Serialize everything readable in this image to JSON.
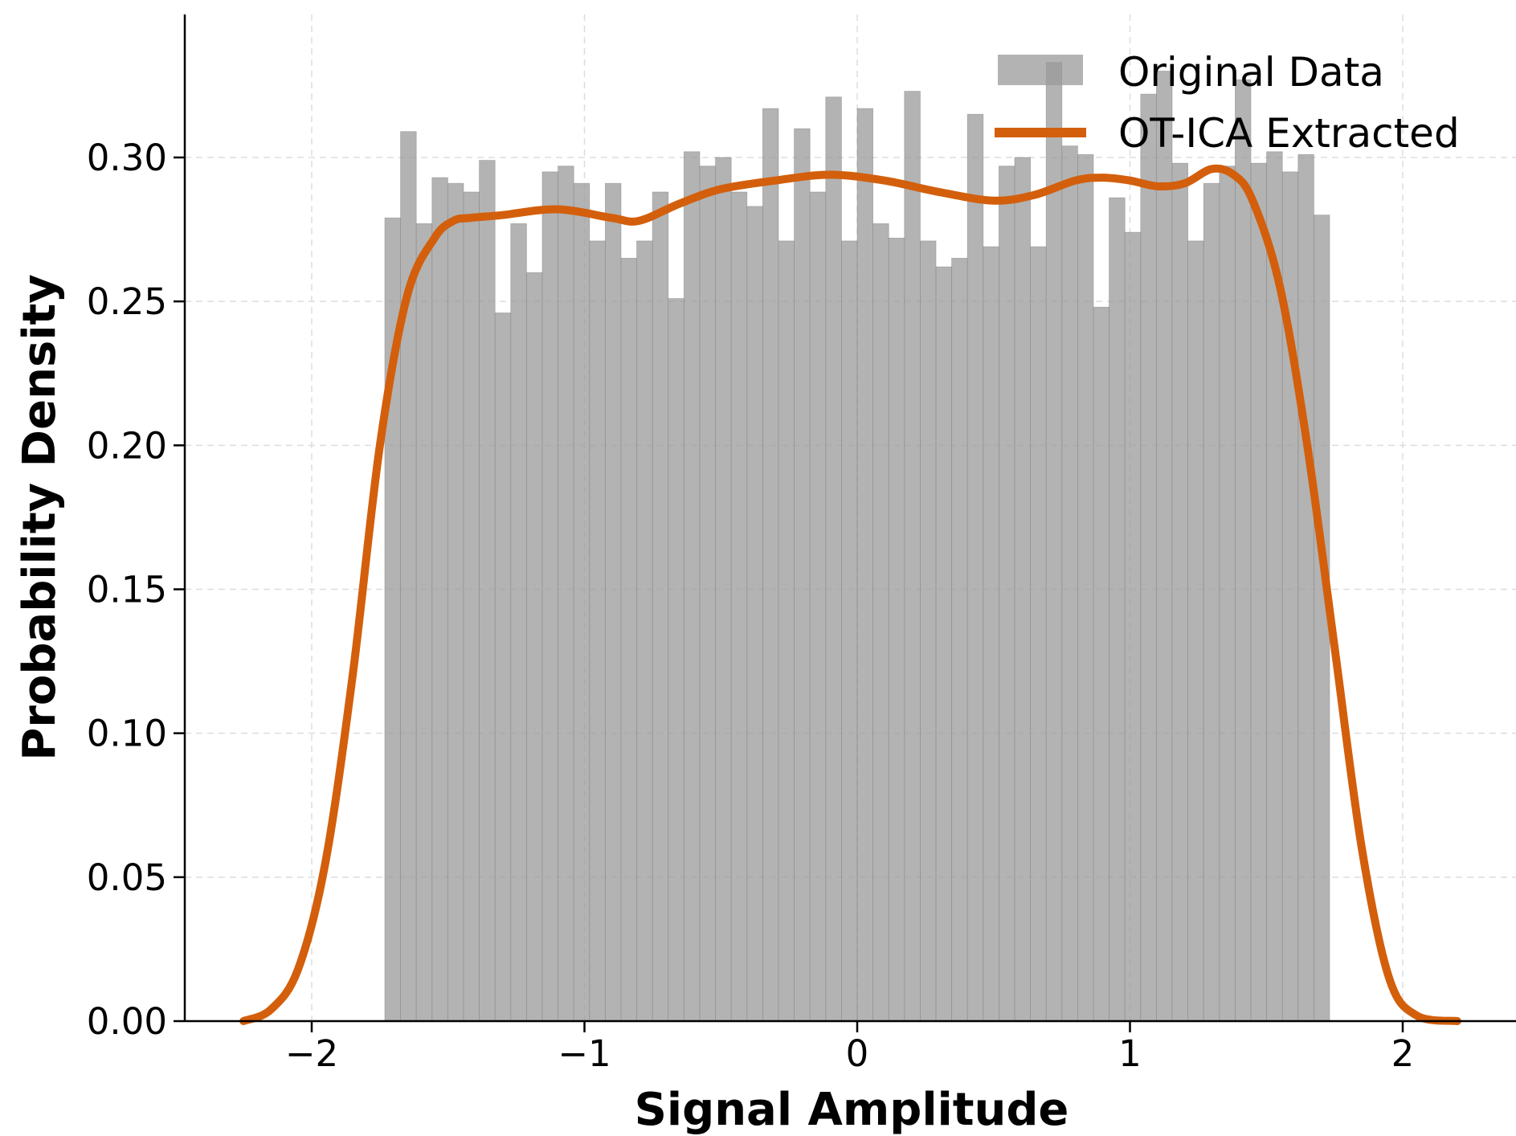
{
  "chart_data": {
    "type": "bar",
    "title": "",
    "xlabel": "Signal Amplitude",
    "ylabel": "Probability Density",
    "xlim": [
      -2.45,
      2.45
    ],
    "ylim": [
      0.0,
      0.35
    ],
    "x_ticks": [
      -2,
      -1,
      0,
      1,
      2
    ],
    "x_tick_labels": [
      "−2",
      "−1",
      "0",
      "1",
      "2"
    ],
    "y_ticks": [
      0.0,
      0.05,
      0.1,
      0.15,
      0.2,
      0.25,
      0.3
    ],
    "y_tick_labels": [
      "0.00",
      "0.05",
      "0.10",
      "0.15",
      "0.20",
      "0.25",
      "0.30"
    ],
    "grid": true,
    "legend_position": "top-right",
    "histogram": {
      "name": "Original Data",
      "color": "#999999",
      "opacity": 0.75,
      "bin_start": -1.732,
      "bin_end": 1.732,
      "values": [
        0.279,
        0.309,
        0.277,
        0.293,
        0.291,
        0.288,
        0.299,
        0.246,
        0.277,
        0.26,
        0.295,
        0.297,
        0.291,
        0.271,
        0.291,
        0.265,
        0.271,
        0.288,
        0.251,
        0.302,
        0.297,
        0.3,
        0.288,
        0.283,
        0.317,
        0.271,
        0.31,
        0.288,
        0.321,
        0.271,
        0.317,
        0.277,
        0.272,
        0.323,
        0.271,
        0.262,
        0.265,
        0.315,
        0.269,
        0.297,
        0.3,
        0.269,
        0.333,
        0.304,
        0.301,
        0.248,
        0.286,
        0.274,
        0.322,
        0.33,
        0.298,
        0.271,
        0.291,
        0.297,
        0.327,
        0.298,
        0.302,
        0.295,
        0.301,
        0.28
      ]
    },
    "line": {
      "name": "OT-ICA Extracted",
      "color": "#d35f0c",
      "x": [
        -2.25,
        -2.15,
        -2.05,
        -1.95,
        -1.85,
        -1.75,
        -1.65,
        -1.55,
        -1.48,
        -1.42,
        -1.3,
        -1.1,
        -0.9,
        -0.8,
        -0.65,
        -0.5,
        -0.3,
        -0.1,
        0.1,
        0.3,
        0.5,
        0.65,
        0.8,
        0.9,
        1.0,
        1.1,
        1.2,
        1.3,
        1.38,
        1.45,
        1.55,
        1.65,
        1.75,
        1.85,
        1.95,
        2.05,
        2.2
      ],
      "y": [
        0.0,
        0.004,
        0.018,
        0.055,
        0.12,
        0.2,
        0.252,
        0.272,
        0.278,
        0.279,
        0.28,
        0.282,
        0.279,
        0.278,
        0.284,
        0.289,
        0.292,
        0.294,
        0.292,
        0.288,
        0.285,
        0.287,
        0.292,
        0.293,
        0.292,
        0.29,
        0.291,
        0.296,
        0.294,
        0.285,
        0.255,
        0.2,
        0.13,
        0.06,
        0.015,
        0.002,
        0.0
      ]
    }
  }
}
